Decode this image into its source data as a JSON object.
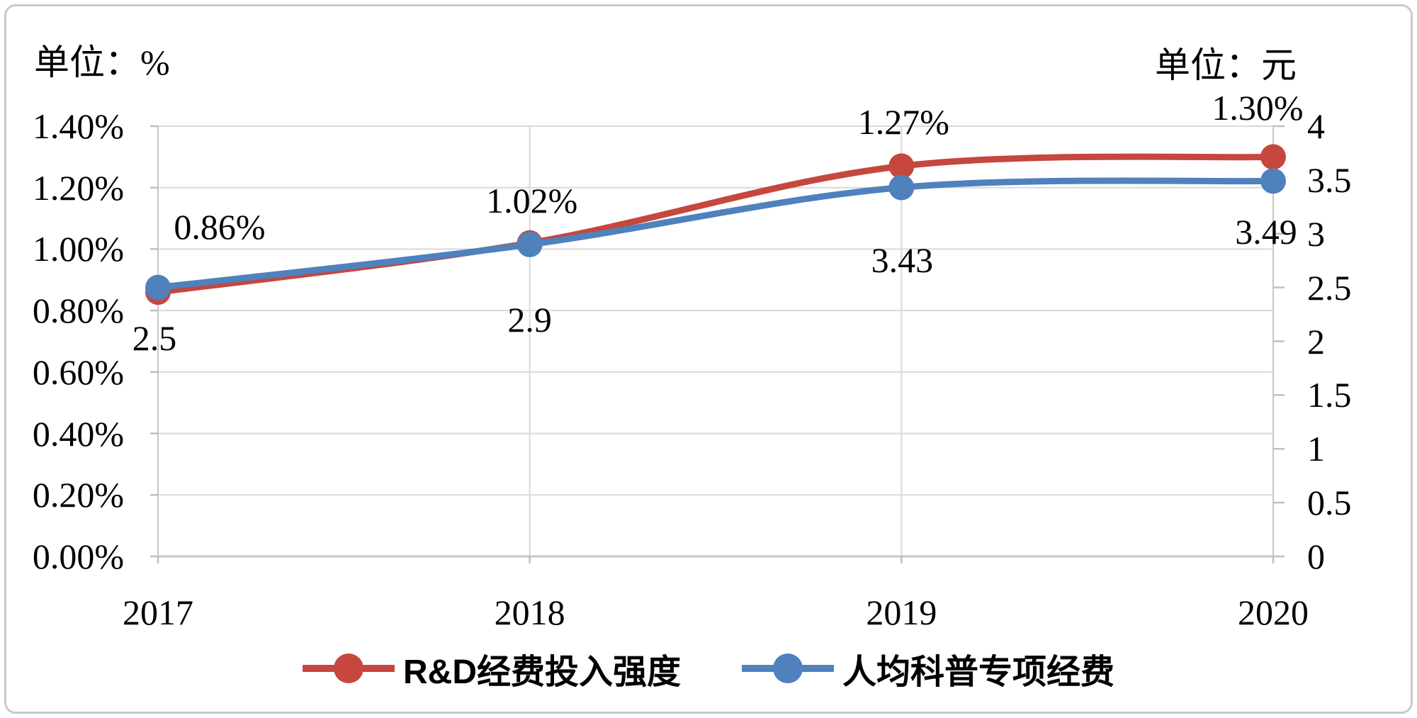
{
  "figure": {
    "left_unit_label": "单位：%",
    "right_unit_label": "单位：元"
  },
  "chart_data": {
    "type": "line",
    "smooth": true,
    "grid": true,
    "legend_position": "bottom",
    "categories": [
      "2017",
      "2018",
      "2019",
      "2020"
    ],
    "series": [
      {
        "name": "R&D经费投入强度",
        "axis": "left",
        "color": "#C5473E",
        "values": [
          0.86,
          1.02,
          1.27,
          1.3
        ],
        "point_labels": [
          "0.86%",
          "1.02%",
          "1.27%",
          "1.30%"
        ]
      },
      {
        "name": "人均科普专项经费",
        "axis": "right",
        "color": "#4F81BD",
        "values": [
          2.5,
          2.9,
          3.43,
          3.49
        ],
        "point_labels": [
          "2.5",
          "2.9",
          "3.43",
          "3.49"
        ]
      }
    ],
    "left_axis": {
      "unit": "%",
      "min": 0,
      "max": 1.4,
      "ticks": [
        "1.40%",
        "1.20%",
        "1.00%",
        "0.80%",
        "0.60%",
        "0.40%",
        "0.20%",
        "0.00%"
      ]
    },
    "right_axis": {
      "unit": "元",
      "min": 0,
      "max": 4,
      "ticks": [
        "4",
        "3.5",
        "3",
        "2.5",
        "2",
        "1.5",
        "1",
        "0.5",
        "0"
      ]
    },
    "colors": {
      "gridline": "#D9D9D9",
      "axis_line": "#C6C6C6",
      "tick_mark": "#BFBFBF",
      "text": "#000000"
    }
  }
}
